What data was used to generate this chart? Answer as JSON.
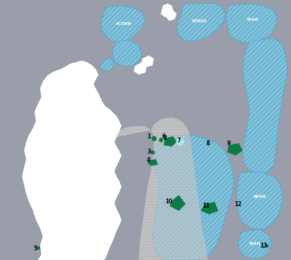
{
  "background_color": "#9a9daa",
  "land_color": "#ffffff",
  "shelf_color": "#cccccc",
  "wind_fill": "#85cce8",
  "wind_edge": "#48a8c8",
  "wind_hatch": "/////",
  "wind_alpha": 0.8,
  "oilfield_color": "#0f7a45",
  "figsize": [
    4.2,
    3.76
  ],
  "dpi": 100,
  "xlim": [
    0,
    420
  ],
  "ylim": [
    376,
    0
  ]
}
